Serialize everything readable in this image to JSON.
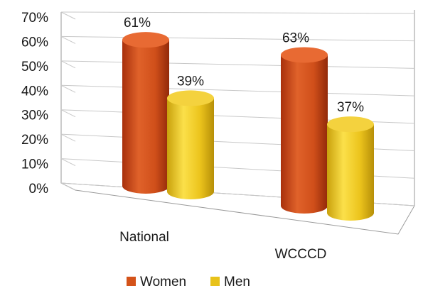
{
  "chart_data": {
    "type": "bar",
    "style": "3d-cylinder",
    "categories": [
      "National",
      "WCCCD"
    ],
    "series": [
      {
        "name": "Women",
        "values": [
          61,
          63
        ],
        "color": "#d4531a"
      },
      {
        "name": "Men",
        "values": [
          39,
          37
        ],
        "color": "#e8c21a"
      }
    ],
    "value_labels": [
      [
        "61%",
        "63%"
      ],
      [
        "39%",
        "37%"
      ]
    ],
    "y_ticks": [
      "0%",
      "10%",
      "20%",
      "30%",
      "40%",
      "50%",
      "60%",
      "70%"
    ],
    "ylim": [
      0,
      70
    ],
    "grid": true,
    "legend": "bottom"
  }
}
